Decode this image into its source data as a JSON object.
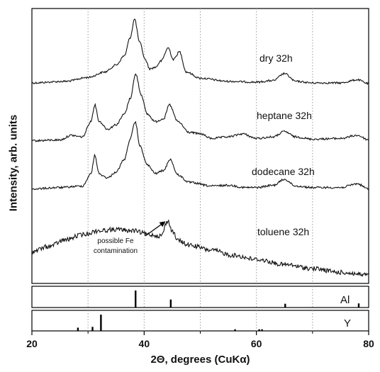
{
  "chart_data": {
    "type": "line",
    "xlabel": "2Θ, degrees (CuKα)",
    "ylabel": "Intensity, arb. units",
    "xlim": [
      20,
      80
    ],
    "x_ticks": [
      "20",
      "40",
      "60",
      "80"
    ],
    "grid_x": [
      30,
      40,
      50,
      60,
      70
    ],
    "series": [
      {
        "name": "dry 32h",
        "x": [
          20,
          26,
          30,
          33,
          35,
          36.5,
          37.5,
          38.3,
          39.2,
          40.2,
          41,
          42,
          43,
          44.3,
          45.2,
          46.3,
          47.5,
          50,
          55,
          60,
          63,
          65,
          67,
          70,
          75,
          78,
          80
        ],
        "y": [
          0.1,
          0.12,
          0.17,
          0.24,
          0.33,
          0.45,
          0.68,
          0.92,
          0.62,
          0.4,
          0.28,
          0.3,
          0.38,
          0.55,
          0.4,
          0.5,
          0.24,
          0.16,
          0.12,
          0.11,
          0.13,
          0.22,
          0.12,
          0.1,
          0.1,
          0.14,
          0.09
        ]
      },
      {
        "name": "heptane 32h",
        "x": [
          20,
          25,
          27,
          29,
          30.5,
          31.2,
          32,
          33.5,
          35,
          36.5,
          37.5,
          38.5,
          39.5,
          40.5,
          42,
          43.5,
          44.5,
          46,
          48,
          50,
          52,
          55,
          57.5,
          60,
          63,
          65,
          67,
          70,
          75,
          78,
          80
        ],
        "y": [
          0.05,
          0.06,
          0.12,
          0.1,
          0.3,
          0.52,
          0.3,
          0.2,
          0.26,
          0.4,
          0.6,
          0.92,
          0.65,
          0.4,
          0.3,
          0.34,
          0.52,
          0.3,
          0.16,
          0.14,
          0.08,
          0.1,
          0.14,
          0.08,
          0.1,
          0.17,
          0.1,
          0.07,
          0.08,
          0.12,
          0.06
        ]
      },
      {
        "name": "dodecane 32h",
        "x": [
          20,
          25,
          29,
          30.5,
          31.2,
          32,
          33.5,
          35,
          36.5,
          37.5,
          38.4,
          39.3,
          40.5,
          42,
          43.5,
          44.6,
          46,
          48,
          52,
          55,
          58,
          60,
          63,
          65,
          67,
          70,
          75,
          78,
          80
        ],
        "y": [
          0.05,
          0.07,
          0.09,
          0.25,
          0.5,
          0.25,
          0.2,
          0.28,
          0.45,
          0.72,
          0.95,
          0.62,
          0.38,
          0.26,
          0.3,
          0.45,
          0.24,
          0.14,
          0.09,
          0.1,
          0.07,
          0.07,
          0.1,
          0.18,
          0.09,
          0.07,
          0.07,
          0.12,
          0.05
        ]
      },
      {
        "name": "toluene 32h",
        "x": [
          20,
          23,
          26,
          29,
          32,
          35,
          38,
          41,
          43,
          44.2,
          45,
          46,
          48,
          52,
          56,
          60,
          65,
          70,
          75,
          80
        ],
        "y": [
          0.38,
          0.46,
          0.56,
          0.64,
          0.7,
          0.72,
          0.7,
          0.64,
          0.62,
          0.85,
          0.7,
          0.55,
          0.48,
          0.4,
          0.32,
          0.26,
          0.18,
          0.12,
          0.06,
          0.02
        ]
      }
    ],
    "reference_patterns": [
      {
        "name": "Al",
        "positions": [
          38.47,
          44.74,
          65.13,
          78.23
        ],
        "intensities": [
          1.0,
          0.47,
          0.22,
          0.24
        ]
      },
      {
        "name": "Y",
        "positions": [
          28.2,
          30.8,
          32.3,
          56.2,
          60.5,
          61.0
        ],
        "intensities": [
          0.2,
          0.25,
          1.0,
          0.1,
          0.1,
          0.1
        ]
      }
    ],
    "annotations": [
      {
        "text": "possible Fe contamination",
        "points_to_x": 44.2,
        "series": "toluene 32h"
      }
    ]
  }
}
